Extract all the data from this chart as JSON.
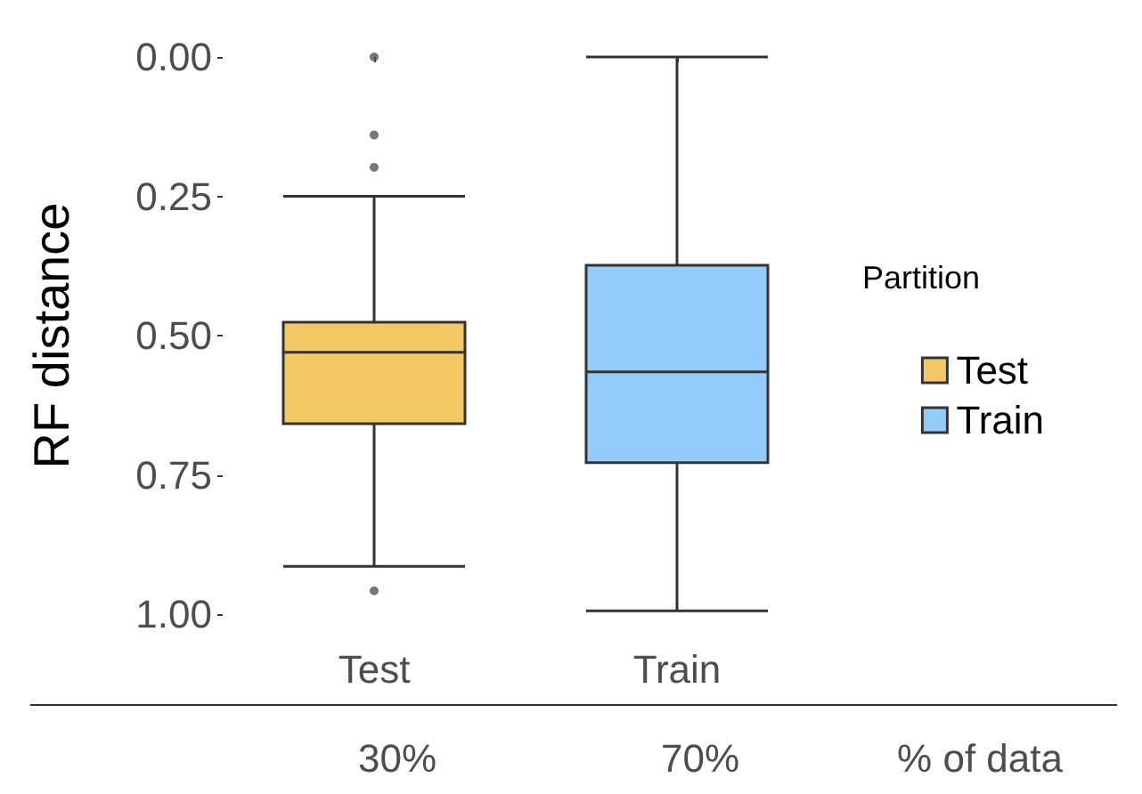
{
  "chart_data": {
    "type": "box",
    "ylabel": "RF distance",
    "legend_title": "Partition",
    "categories": [
      "Test",
      "Train"
    ],
    "series": [
      {
        "name": "Test",
        "color": "#f2c964",
        "boxes": [
          {
            "low": 0.25,
            "q1": 0.476,
            "median": 0.53,
            "q3": 0.658,
            "high": 0.914,
            "outliers": [
              0.0,
              0.14,
              0.198,
              0.958
            ]
          },
          null
        ]
      },
      {
        "name": "Train",
        "color": "#93cbfa",
        "boxes": [
          null,
          {
            "low": 0.0,
            "q1": 0.374,
            "median": 0.565,
            "q3": 0.728,
            "high": 0.994
          }
        ]
      }
    ],
    "ylim": [
      1,
      0
    ],
    "yticks": [
      {
        "value": 0,
        "label": "0.00"
      },
      {
        "value": 0.25,
        "label": "0.25"
      },
      {
        "value": 0.5,
        "label": "0.50"
      },
      {
        "value": 0.75,
        "label": "0.75"
      },
      {
        "value": 1,
        "label": "1.00"
      }
    ],
    "grid": false,
    "legend": "right",
    "annotations": [
      "30%",
      "70%",
      "% of data"
    ]
  }
}
